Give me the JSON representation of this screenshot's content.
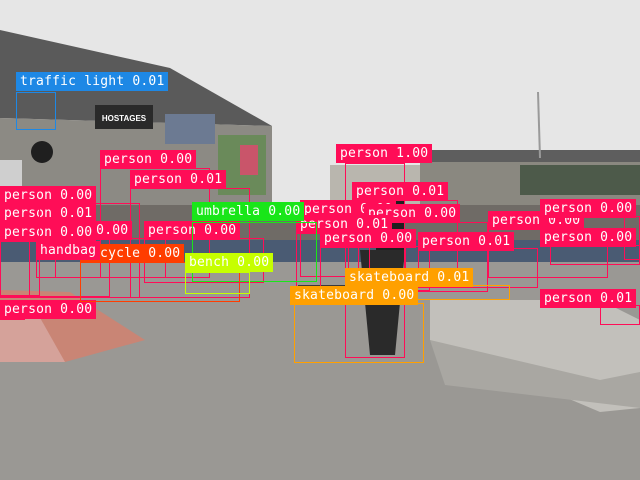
{
  "scene": {
    "signage": {
      "hostages": "HOSTAGES"
    }
  },
  "class_colors": {
    "person": "#ff0d57",
    "traffic light": "#1e88e5",
    "umbrella": "#19e619",
    "bicycle": "#ff3d00",
    "bench": "#c6ff00",
    "skateboard": "#ffa000",
    "handbag": "#ff0d57"
  },
  "detections": [
    {
      "label": "traffic light",
      "score": "0.01"
    },
    {
      "label": "person",
      "score": "1.00"
    },
    {
      "label": "person",
      "score": "0.00"
    },
    {
      "label": "person",
      "score": "0.01"
    },
    {
      "label": "person",
      "score": "0.01"
    },
    {
      "label": "person",
      "score": "0.01"
    },
    {
      "label": "person",
      "score": "0.01"
    },
    {
      "label": "person",
      "score": "0.00"
    },
    {
      "label": "person",
      "score": "0.00"
    },
    {
      "label": "person",
      "score": "0.00"
    },
    {
      "label": "person",
      "score": "0.00"
    },
    {
      "label": "person",
      "score": "0.01"
    },
    {
      "label": "person",
      "score": "0.00"
    },
    {
      "label": "person",
      "score": "0.00"
    },
    {
      "label": "person",
      "score": "0.01"
    },
    {
      "label": "person",
      "score": "0.00"
    },
    {
      "label": "person",
      "score": "0.00"
    },
    {
      "label": "person",
      "score": "0.00"
    },
    {
      "label": "person",
      "score": "0.01"
    },
    {
      "label": "person",
      "score": "0.00"
    },
    {
      "label": "person",
      "score": "0.00"
    },
    {
      "label": "umbrella",
      "score": "0.00"
    },
    {
      "label": "bicycle",
      "score": "0.00"
    },
    {
      "label": "bench",
      "score": "0.00"
    },
    {
      "label": "skateboard",
      "score": "0.01"
    },
    {
      "label": "skateboard",
      "score": "0.00"
    },
    {
      "label": "handbag",
      "score": ""
    }
  ]
}
